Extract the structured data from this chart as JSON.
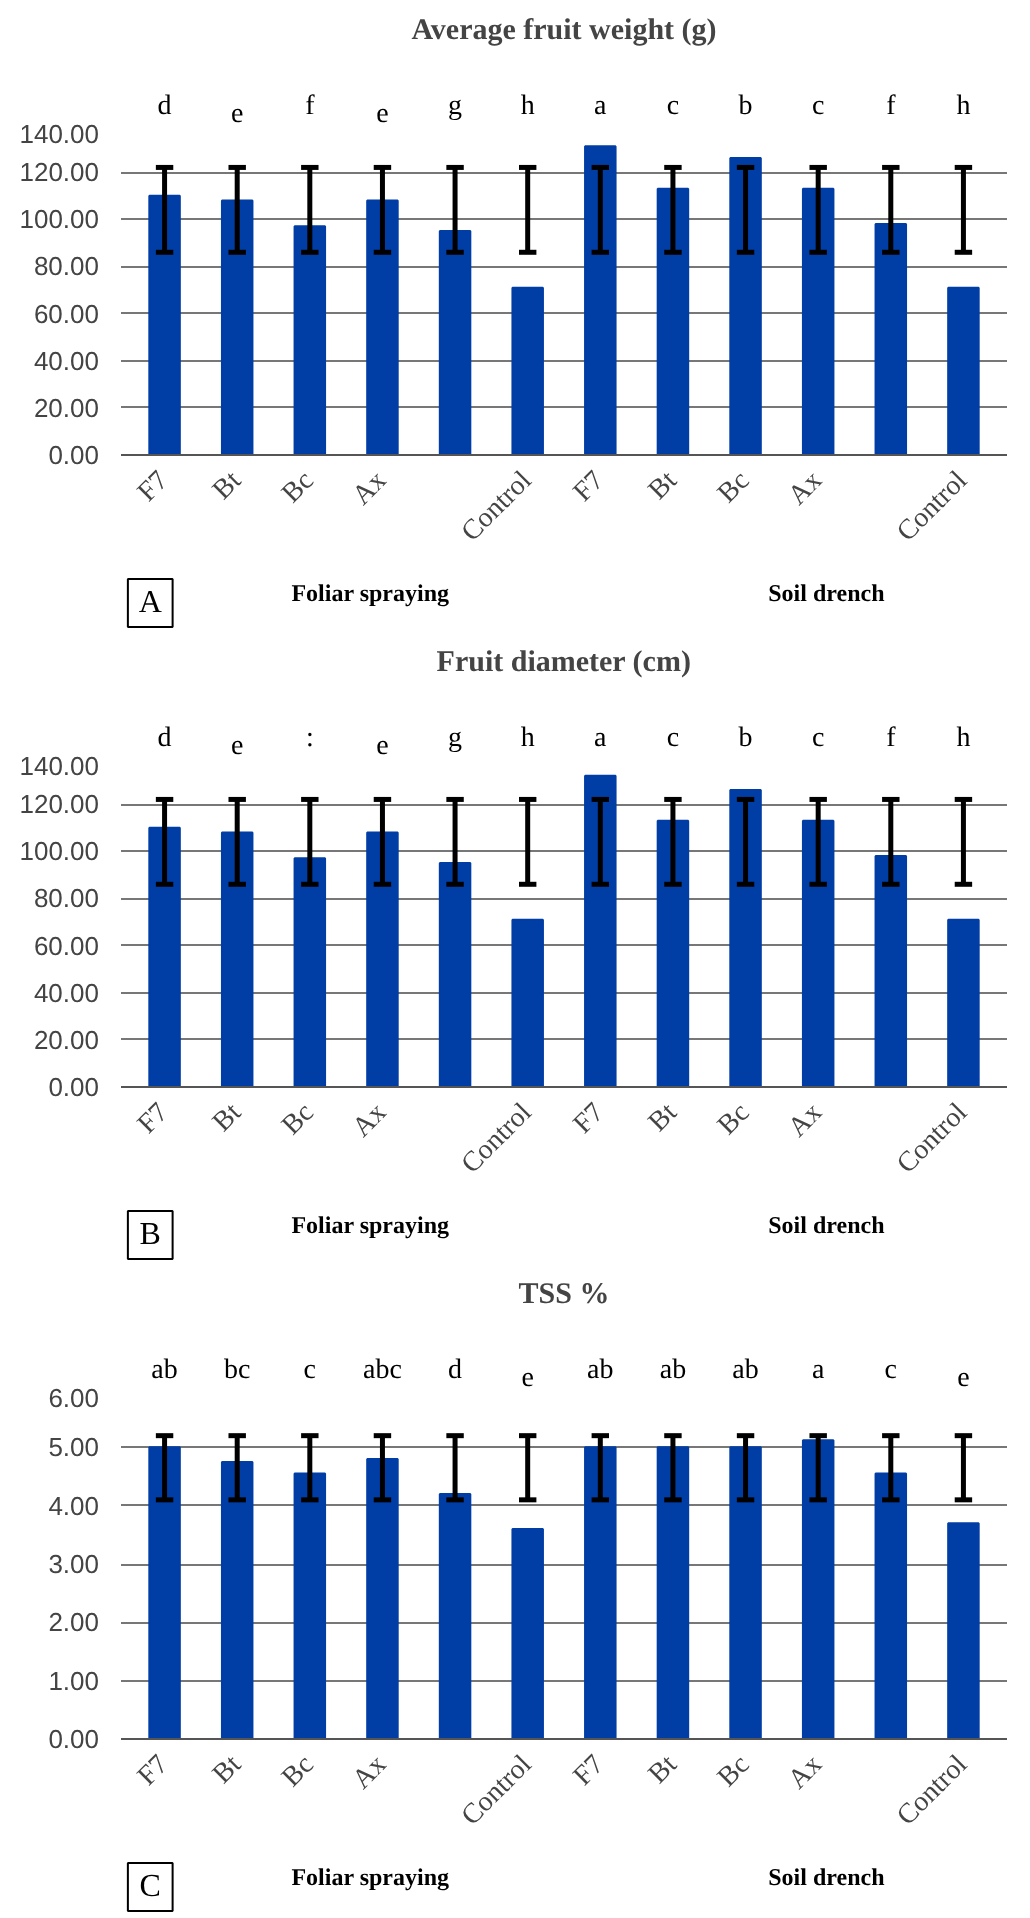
{
  "chart_data": [
    {
      "type": "bar",
      "title": "Average fruit weight (g)",
      "categories": [
        "F7",
        "Bt",
        "Bc",
        "Ax",
        null,
        "Control",
        "F7",
        "Bt",
        "Bc",
        "Ax",
        null,
        "Control"
      ],
      "values": [
        110,
        108,
        97,
        108,
        95,
        71,
        131,
        113,
        126,
        113,
        98,
        71
      ],
      "color": "#003da5",
      "errors": [
        [
          86,
          122
        ],
        [
          86,
          122
        ],
        [
          86,
          122
        ],
        [
          86,
          122
        ],
        [
          86,
          122
        ],
        [
          86,
          122
        ],
        [
          86,
          122
        ],
        [
          86,
          122
        ],
        [
          86,
          122
        ],
        [
          86,
          122
        ],
        [
          86,
          122
        ],
        [
          86,
          122
        ]
      ],
      "ylim": [
        0,
        140
      ],
      "yticks": [
        {
          "value": 0,
          "label": "0.00"
        },
        {
          "value": 20,
          "label": "20.00"
        },
        {
          "value": 40,
          "label": "40.00"
        },
        {
          "value": 60,
          "label": "60.00"
        },
        {
          "value": 80,
          "label": "80.00"
        },
        {
          "value": 100,
          "label": "100.00"
        },
        {
          "value": 120,
          "label": "120.00"
        },
        {
          "value": 140,
          "label": "140.00"
        }
      ],
      "grid": "y",
      "annotations": [
        "A",
        "Foliar spraying",
        "Soil drench",
        "d",
        "e",
        "f",
        "e",
        "g",
        "h",
        "a",
        "c",
        "b",
        "c",
        "f",
        "h"
      ]
    },
    {
      "type": "bar",
      "title": "Fruit diameter (cm)",
      "categories": [
        "F7",
        "Bt",
        "Bc",
        "Ax",
        null,
        "Control",
        "F7",
        "Bt",
        "Bc",
        "Ax",
        null,
        "Control"
      ],
      "values": [
        110,
        108,
        97,
        108,
        95,
        71,
        132,
        113,
        126,
        113,
        98,
        71
      ],
      "color": "#003da5",
      "errors": [
        [
          86,
          122
        ],
        [
          86,
          122
        ],
        [
          86,
          122
        ],
        [
          86,
          122
        ],
        [
          86,
          122
        ],
        [
          86,
          122
        ],
        [
          86,
          122
        ],
        [
          86,
          122
        ],
        [
          86,
          122
        ],
        [
          86,
          122
        ],
        [
          86,
          122
        ],
        [
          86,
          122
        ]
      ],
      "ylim": [
        0,
        140
      ],
      "yticks": [
        {
          "value": 0,
          "label": "0.00"
        },
        {
          "value": 20,
          "label": "20.00"
        },
        {
          "value": 40,
          "label": "40.00"
        },
        {
          "value": 60,
          "label": "60.00"
        },
        {
          "value": 80,
          "label": "80.00"
        },
        {
          "value": 100,
          "label": "100.00"
        },
        {
          "value": 120,
          "label": "120.00"
        },
        {
          "value": 140,
          "label": "140.00"
        }
      ],
      "grid": "y",
      "annotations": [
        "B",
        "Foliar spraying",
        "Soil drench",
        "d",
        "e",
        ":",
        "e",
        "g",
        "h",
        "a",
        "c",
        "b",
        "c",
        "f",
        "h"
      ]
    },
    {
      "type": "bar",
      "title": "TSS %",
      "categories": [
        "F7",
        "Bt",
        "Bc",
        "Ax",
        null,
        "Control",
        "F7",
        "Bt",
        "Bc",
        "Ax",
        null,
        "Control"
      ],
      "values": [
        5.0,
        4.75,
        4.55,
        4.8,
        4.2,
        3.6,
        5.0,
        5.0,
        5.0,
        5.12,
        4.55,
        3.7
      ],
      "color": "#003da5",
      "errors": [
        [
          4.1,
          5.2
        ],
        [
          4.1,
          5.2
        ],
        [
          4.1,
          5.2
        ],
        [
          4.1,
          5.2
        ],
        [
          4.1,
          5.2
        ],
        [
          4.1,
          5.2
        ],
        [
          4.1,
          5.2
        ],
        [
          4.1,
          5.2
        ],
        [
          4.1,
          5.2
        ],
        [
          4.1,
          5.2
        ],
        [
          4.1,
          5.2
        ],
        [
          4.1,
          5.2
        ]
      ],
      "ylim": [
        0,
        6
      ],
      "yticks": [
        {
          "value": 0,
          "label": "0.00"
        },
        {
          "value": 1,
          "label": "1.00"
        },
        {
          "value": 2,
          "label": "2.00"
        },
        {
          "value": 3,
          "label": "3.00"
        },
        {
          "value": 4,
          "label": "4.00"
        },
        {
          "value": 5,
          "label": "5.00"
        },
        {
          "value": 6,
          "label": "6.00"
        }
      ],
      "grid": "y",
      "annotations": [
        "C",
        "Foliar spraying",
        "Soil drench",
        "ab",
        "bc",
        "c",
        "abc",
        "d",
        "e",
        "ab",
        "ab",
        "ab",
        "a",
        "c",
        "e"
      ]
    }
  ]
}
